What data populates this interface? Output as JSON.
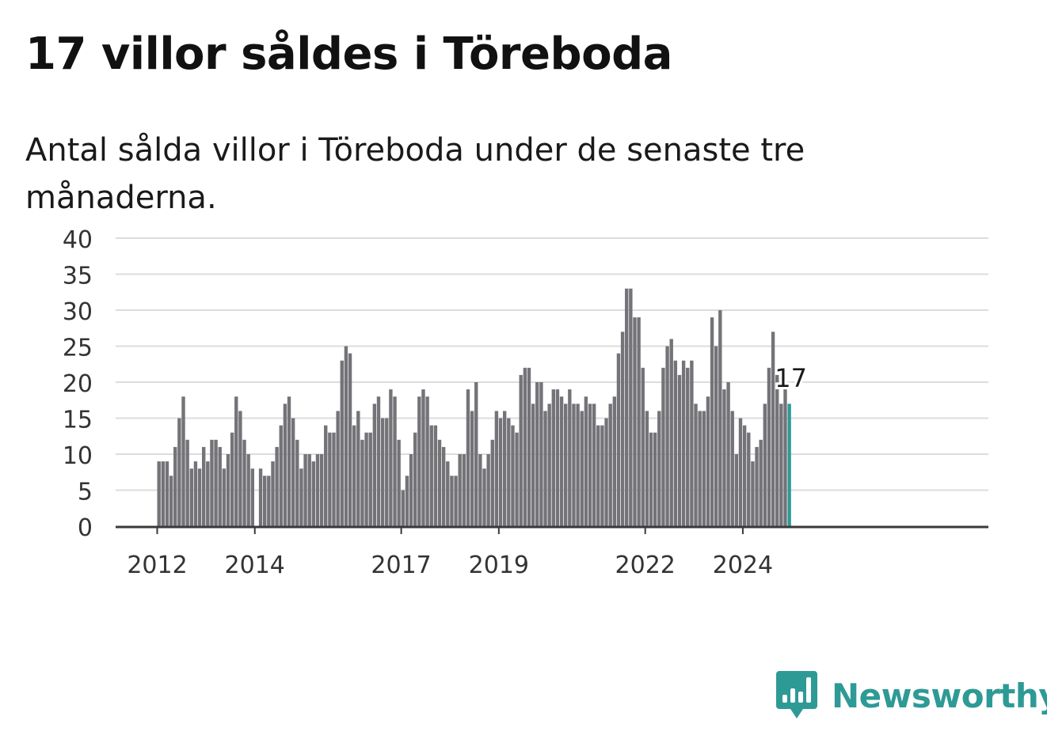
{
  "title": "17 villor såldes i Töreboda",
  "subtitle": "Antal sålda villor i Töreboda under de senaste tre månaderna.",
  "brand": {
    "name": "Newsworthy",
    "logo_icon": "bar-chart-speech-bubble-icon",
    "color": "#2e9a96"
  },
  "chart_data": {
    "type": "bar",
    "y_ticks": [
      "0",
      "5",
      "10",
      "15",
      "20",
      "25",
      "30",
      "35",
      "40"
    ],
    "ylim": [
      0,
      40
    ],
    "grid": true,
    "x_ticks": [
      "2012",
      "2014",
      "2017",
      "2019",
      "2022",
      "2024"
    ],
    "x_start": "2012-01",
    "values": [
      9,
      9,
      9,
      7,
      11,
      15,
      18,
      12,
      8,
      9,
      8,
      11,
      9,
      12,
      12,
      11,
      8,
      10,
      13,
      18,
      16,
      12,
      10,
      8,
      0,
      8,
      7,
      7,
      9,
      11,
      14,
      17,
      18,
      15,
      12,
      8,
      10,
      10,
      9,
      10,
      10,
      14,
      13,
      13,
      16,
      23,
      25,
      24,
      14,
      16,
      12,
      13,
      13,
      17,
      18,
      15,
      15,
      19,
      18,
      12,
      5,
      7,
      10,
      13,
      18,
      19,
      18,
      14,
      14,
      12,
      11,
      9,
      7,
      7,
      10,
      10,
      19,
      16,
      20,
      10,
      8,
      10,
      12,
      16,
      15,
      16,
      15,
      14,
      13,
      21,
      22,
      22,
      17,
      20,
      20,
      16,
      17,
      19,
      19,
      18,
      17,
      19,
      17,
      17,
      16,
      18,
      17,
      17,
      14,
      14,
      15,
      17,
      18,
      24,
      27,
      33,
      33,
      29,
      29,
      22,
      16,
      13,
      13,
      16,
      22,
      25,
      26,
      23,
      21,
      23,
      22,
      23,
      17,
      16,
      16,
      18,
      29,
      25,
      30,
      19,
      20,
      16,
      10,
      15,
      14,
      13,
      9,
      11,
      12,
      17,
      22,
      27,
      21,
      17,
      19,
      17
    ],
    "highlight_label": "17",
    "colors": {
      "bar": "#747378",
      "highlight": "#2e9a96",
      "grid": "#dcdcdc",
      "axis": "#3a3a3a"
    }
  }
}
